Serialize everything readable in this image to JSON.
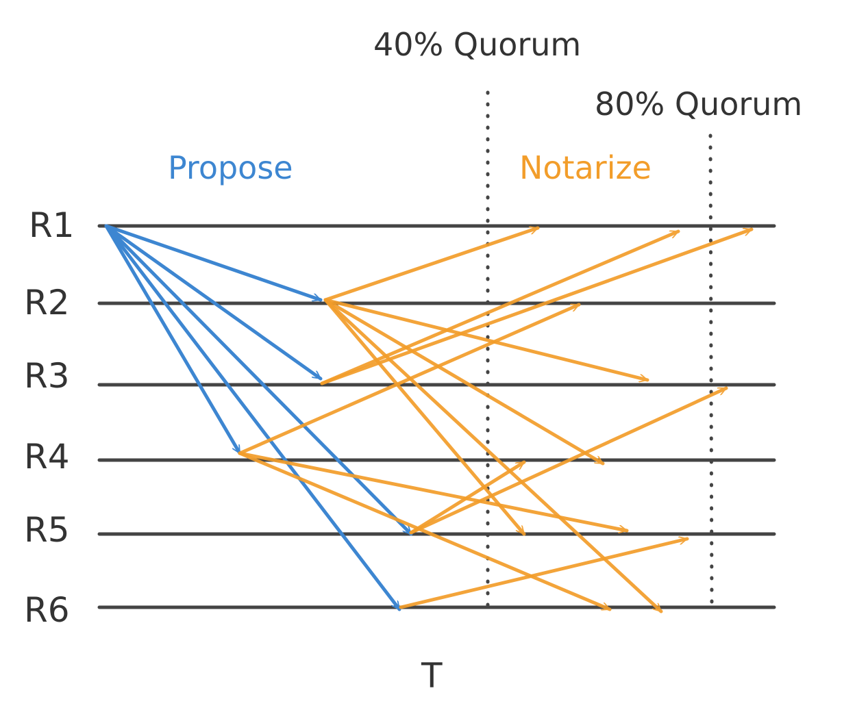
{
  "replicas": [
    "R1",
    "R2",
    "R3",
    "R4",
    "R5",
    "R6"
  ],
  "phases": {
    "propose": "Propose",
    "notarize": "Notarize"
  },
  "quorums": {
    "q40": "40% Quorum",
    "q80": "80% Quorum"
  },
  "time_label": "T",
  "colors": {
    "propose": "#3d86d1",
    "notarize": "#f29d2a",
    "line": "#444444"
  }
}
